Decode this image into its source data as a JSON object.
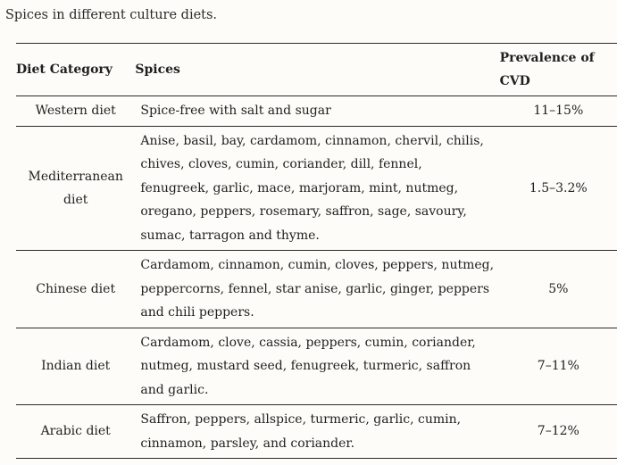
{
  "caption": "Spices in different culture diets.",
  "table": {
    "headers": {
      "diet_category": "Diet Category",
      "spices": "Spices",
      "prevalence": "Prevalence of CVD"
    },
    "rows": [
      {
        "diet": "Western diet",
        "spices": "Spice-free with salt and sugar",
        "prevalence": "11–15%"
      },
      {
        "diet": "Mediterranean diet",
        "spices": "Anise, basil, bay, cardamom, cinnamon, chervil, chilis, chives, cloves, cumin, coriander, dill, fennel, fenugreek, garlic, mace, marjoram, mint, nutmeg, oregano, peppers, rosemary, saffron, sage, savoury, sumac, tarragon and thyme.",
        "prevalence": "1.5–3.2%"
      },
      {
        "diet": "Chinese diet",
        "spices": "Cardamom, cinnamon, cumin, cloves, peppers, nutmeg, peppercorns, fennel, star anise, garlic, ginger, peppers and chili peppers.",
        "prevalence": "5%"
      },
      {
        "diet": "Indian diet",
        "spices": "Cardamom, clove, cassia, peppers, cumin, coriander, nutmeg, mustard seed, fenugreek, turmeric, saffron and garlic.",
        "prevalence": "7–11%"
      },
      {
        "diet": "Arabic diet",
        "spices": "Saffron, peppers, allspice, turmeric, garlic, cumin, cinnamon, parsley, and coriander.",
        "prevalence": "7–12%"
      }
    ]
  }
}
